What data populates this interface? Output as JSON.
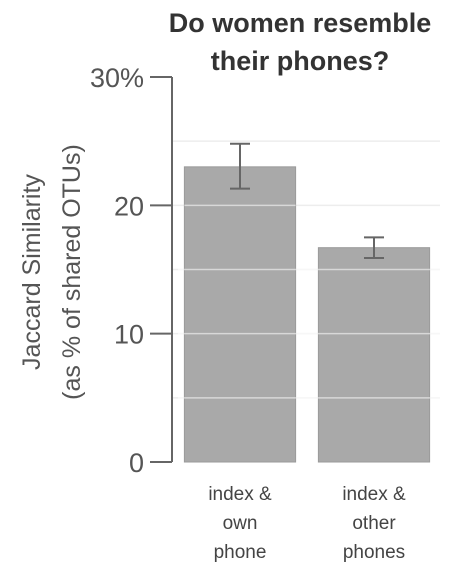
{
  "chart_data": {
    "type": "bar",
    "title": [
      "Do women resemble",
      "their phones?"
    ],
    "ylabel": [
      "Jaccard Similarity",
      "(as % of shared OTUs)"
    ],
    "xlabel": "",
    "categories": [
      [
        "index &",
        "own",
        "phone"
      ],
      [
        "index &",
        "other",
        "phones"
      ]
    ],
    "values": [
      23.0,
      16.7
    ],
    "error_low": [
      21.3,
      15.9
    ],
    "error_high": [
      24.8,
      17.5
    ],
    "ylim": [
      0,
      30
    ],
    "yticks": [
      {
        "value": 0,
        "label": "0"
      },
      {
        "value": 10,
        "label": "10"
      },
      {
        "value": 20,
        "label": "20"
      },
      {
        "value": 30,
        "label": "30%"
      }
    ],
    "gridlines": [
      5,
      10,
      15,
      20,
      25
    ],
    "grid": true,
    "legend": "none",
    "bar_color": "#a9a9a9",
    "bar_edge_color": "#9a9a9a",
    "grid_color": "#ededed",
    "axis_color": "#666666",
    "error_color": "#666666"
  }
}
